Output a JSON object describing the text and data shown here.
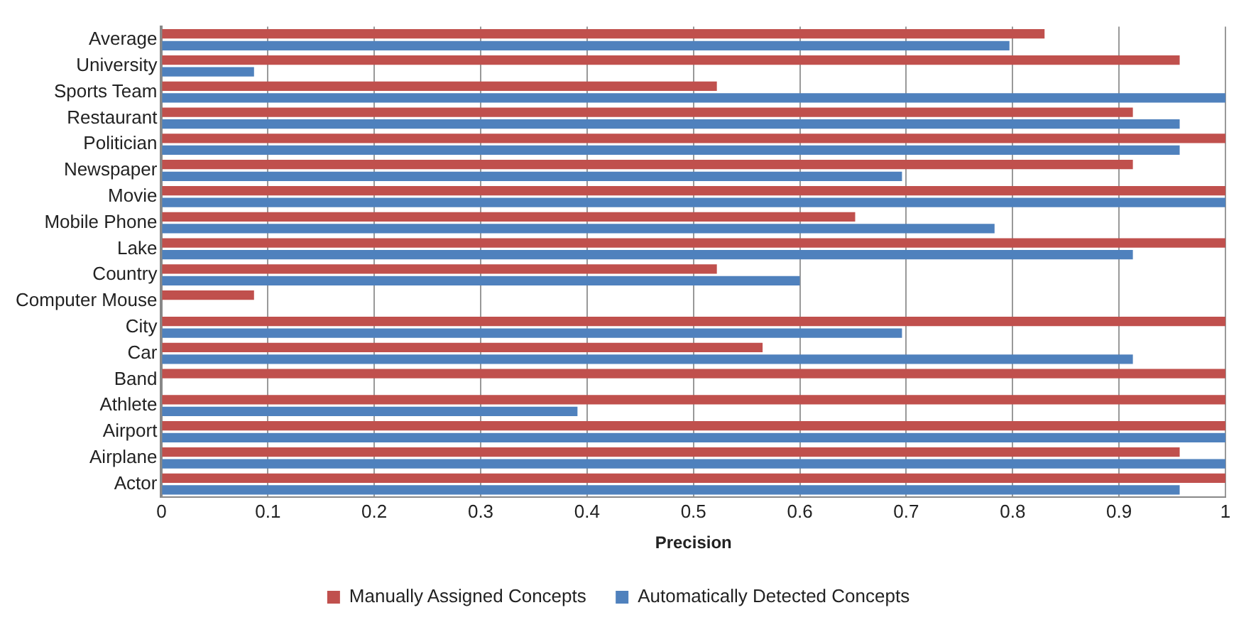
{
  "chart_data": {
    "type": "bar",
    "orientation": "horizontal",
    "xlabel": "Precision",
    "categories": [
      "Average",
      "University",
      "Sports Team",
      "Restaurant",
      "Politician",
      "Newspaper",
      "Movie",
      "Mobile Phone",
      "Lake",
      "Country",
      "Computer Mouse",
      "City",
      "Car",
      "Band",
      "Athlete",
      "Airport",
      "Airplane",
      "Actor"
    ],
    "series": [
      {
        "name": "Manually Assigned Concepts",
        "color": "#c0504d",
        "values": [
          0.83,
          0.957,
          0.522,
          0.913,
          1,
          0.913,
          1,
          0.652,
          1,
          0.522,
          0.087,
          1,
          0.565,
          1,
          1,
          1,
          0.957,
          1
        ]
      },
      {
        "name": "Automatically Detected Concepts",
        "color": "#4f81bd",
        "values": [
          0.797,
          0.087,
          1,
          0.957,
          0.957,
          0.696,
          1,
          0.783,
          0.913,
          0.6,
          0,
          0.696,
          0.913,
          0,
          0.391,
          1,
          1,
          0.957
        ]
      }
    ],
    "xlim": [
      0,
      1
    ],
    "xticks": [
      0,
      0.1,
      0.2,
      0.3,
      0.4,
      0.5,
      0.6,
      0.7,
      0.8,
      0.9,
      1
    ],
    "grid": "x",
    "legend": "bottom"
  }
}
